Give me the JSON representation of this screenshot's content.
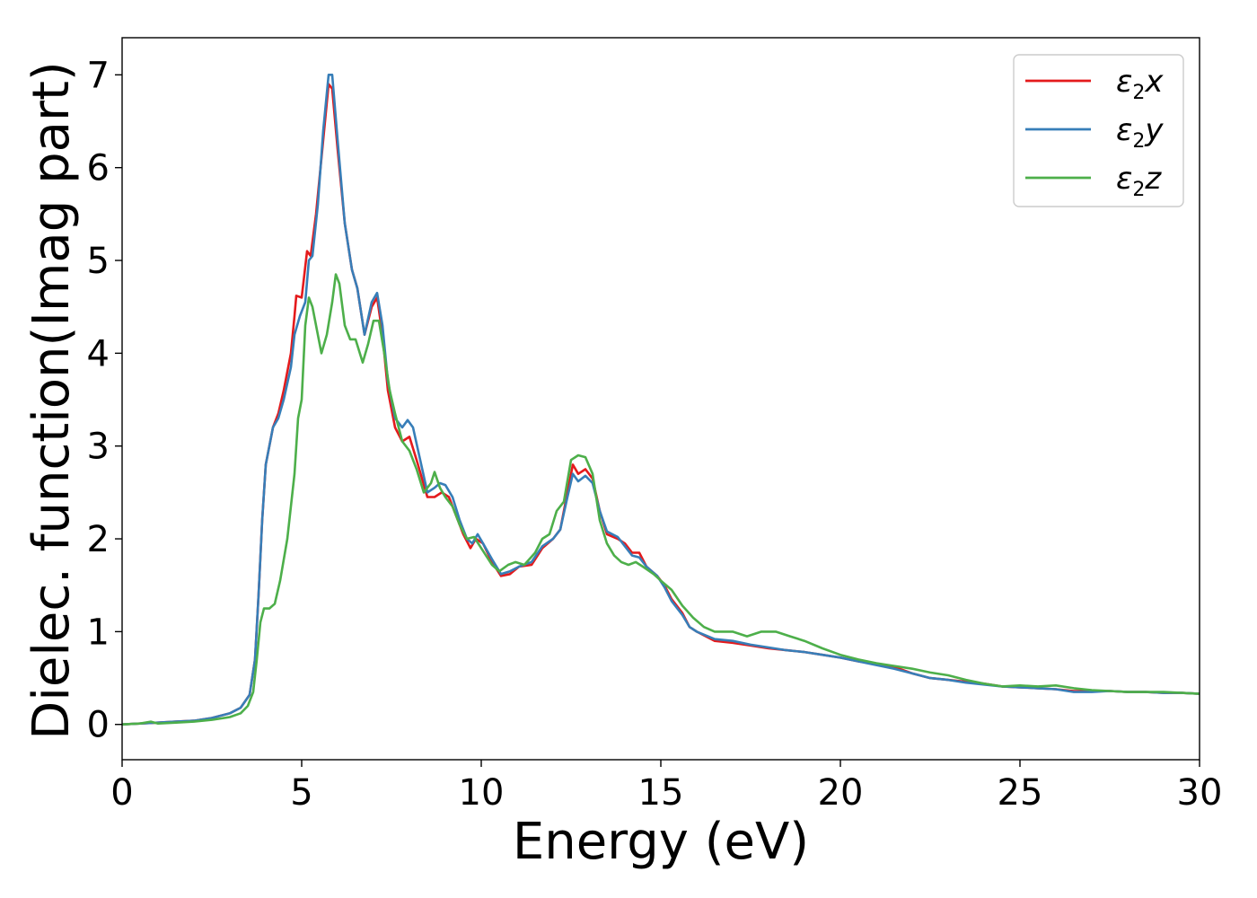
{
  "chart_data": {
    "type": "line",
    "xlabel": "Energy (eV)",
    "ylabel": "Dielec. function(Imag part)",
    "xlim": [
      0,
      30
    ],
    "ylim": [
      -0.38,
      7.4
    ],
    "x_ticks": [
      0,
      5,
      10,
      15,
      20,
      25,
      30
    ],
    "y_ticks": [
      0,
      1,
      2,
      3,
      4,
      5,
      6,
      7
    ],
    "grid": false,
    "legend_position": "top-right",
    "series": [
      {
        "name": "ε2x",
        "legend": {
          "base": "ε",
          "sub": "2",
          "suffix": "x"
        },
        "color": "#e41a1c",
        "points": [
          [
            0,
            0.0
          ],
          [
            0.5,
            0.01
          ],
          [
            1,
            0.02
          ],
          [
            1.5,
            0.03
          ],
          [
            2,
            0.04
          ],
          [
            2.5,
            0.07
          ],
          [
            3,
            0.12
          ],
          [
            3.3,
            0.18
          ],
          [
            3.55,
            0.32
          ],
          [
            3.7,
            0.7
          ],
          [
            3.8,
            1.4
          ],
          [
            3.9,
            2.2
          ],
          [
            4.0,
            2.8
          ],
          [
            4.2,
            3.2
          ],
          [
            4.35,
            3.35
          ],
          [
            4.5,
            3.6
          ],
          [
            4.7,
            4.0
          ],
          [
            4.8,
            4.4
          ],
          [
            4.85,
            4.62
          ],
          [
            5.0,
            4.6
          ],
          [
            5.15,
            5.1
          ],
          [
            5.25,
            5.05
          ],
          [
            5.4,
            5.5
          ],
          [
            5.6,
            6.3
          ],
          [
            5.75,
            6.9
          ],
          [
            5.85,
            6.85
          ],
          [
            6.0,
            6.2
          ],
          [
            6.2,
            5.4
          ],
          [
            6.4,
            4.9
          ],
          [
            6.55,
            4.7
          ],
          [
            6.75,
            4.2
          ],
          [
            6.95,
            4.5
          ],
          [
            7.1,
            4.6
          ],
          [
            7.25,
            4.2
          ],
          [
            7.4,
            3.6
          ],
          [
            7.6,
            3.2
          ],
          [
            7.8,
            3.05
          ],
          [
            8.0,
            3.1
          ],
          [
            8.2,
            2.85
          ],
          [
            8.5,
            2.45
          ],
          [
            8.7,
            2.45
          ],
          [
            8.9,
            2.5
          ],
          [
            9.1,
            2.45
          ],
          [
            9.3,
            2.25
          ],
          [
            9.5,
            2.05
          ],
          [
            9.7,
            1.9
          ],
          [
            9.85,
            2.0
          ],
          [
            10.05,
            1.95
          ],
          [
            10.3,
            1.75
          ],
          [
            10.55,
            1.6
          ],
          [
            10.8,
            1.62
          ],
          [
            11.05,
            1.7
          ],
          [
            11.4,
            1.72
          ],
          [
            11.7,
            1.9
          ],
          [
            12.0,
            2.0
          ],
          [
            12.2,
            2.1
          ],
          [
            12.4,
            2.5
          ],
          [
            12.55,
            2.8
          ],
          [
            12.7,
            2.7
          ],
          [
            12.9,
            2.75
          ],
          [
            13.1,
            2.65
          ],
          [
            13.3,
            2.3
          ],
          [
            13.5,
            2.05
          ],
          [
            13.8,
            2.0
          ],
          [
            14.0,
            1.95
          ],
          [
            14.2,
            1.85
          ],
          [
            14.4,
            1.85
          ],
          [
            14.6,
            1.7
          ],
          [
            14.9,
            1.6
          ],
          [
            15.1,
            1.5
          ],
          [
            15.3,
            1.35
          ],
          [
            15.6,
            1.2
          ],
          [
            15.8,
            1.05
          ],
          [
            16.0,
            1.0
          ],
          [
            16.5,
            0.9
          ],
          [
            17.0,
            0.88
          ],
          [
            17.5,
            0.85
          ],
          [
            18.0,
            0.82
          ],
          [
            18.5,
            0.8
          ],
          [
            19.0,
            0.78
          ],
          [
            19.5,
            0.75
          ],
          [
            20.0,
            0.72
          ],
          [
            20.5,
            0.68
          ],
          [
            21.0,
            0.65
          ],
          [
            21.5,
            0.62
          ],
          [
            22.0,
            0.55
          ],
          [
            22.5,
            0.5
          ],
          [
            23.0,
            0.48
          ],
          [
            23.5,
            0.46
          ],
          [
            24.0,
            0.44
          ],
          [
            24.5,
            0.41
          ],
          [
            25.0,
            0.4
          ],
          [
            25.5,
            0.39
          ],
          [
            26.0,
            0.38
          ],
          [
            26.5,
            0.36
          ],
          [
            27.0,
            0.36
          ],
          [
            27.5,
            0.36
          ],
          [
            28.0,
            0.35
          ],
          [
            28.5,
            0.35
          ],
          [
            29.0,
            0.34
          ],
          [
            29.5,
            0.34
          ],
          [
            30.0,
            0.33
          ]
        ]
      },
      {
        "name": "ε2y",
        "legend": {
          "base": "ε",
          "sub": "2",
          "suffix": "y"
        },
        "color": "#377eb8",
        "points": [
          [
            0,
            0.0
          ],
          [
            0.5,
            0.01
          ],
          [
            1,
            0.02
          ],
          [
            1.5,
            0.03
          ],
          [
            2,
            0.04
          ],
          [
            2.5,
            0.07
          ],
          [
            3,
            0.12
          ],
          [
            3.3,
            0.18
          ],
          [
            3.55,
            0.32
          ],
          [
            3.7,
            0.7
          ],
          [
            3.8,
            1.4
          ],
          [
            3.9,
            2.2
          ],
          [
            4.0,
            2.8
          ],
          [
            4.2,
            3.2
          ],
          [
            4.35,
            3.3
          ],
          [
            4.5,
            3.5
          ],
          [
            4.7,
            3.85
          ],
          [
            4.8,
            4.2
          ],
          [
            4.95,
            4.4
          ],
          [
            5.1,
            4.55
          ],
          [
            5.2,
            5.0
          ],
          [
            5.3,
            5.05
          ],
          [
            5.45,
            5.6
          ],
          [
            5.6,
            6.4
          ],
          [
            5.75,
            7.0
          ],
          [
            5.85,
            7.0
          ],
          [
            6.0,
            6.3
          ],
          [
            6.2,
            5.4
          ],
          [
            6.4,
            4.9
          ],
          [
            6.55,
            4.7
          ],
          [
            6.75,
            4.2
          ],
          [
            6.95,
            4.55
          ],
          [
            7.1,
            4.65
          ],
          [
            7.25,
            4.3
          ],
          [
            7.4,
            3.7
          ],
          [
            7.6,
            3.3
          ],
          [
            7.8,
            3.2
          ],
          [
            7.95,
            3.28
          ],
          [
            8.1,
            3.2
          ],
          [
            8.3,
            2.85
          ],
          [
            8.5,
            2.5
          ],
          [
            8.7,
            2.55
          ],
          [
            8.85,
            2.6
          ],
          [
            9.0,
            2.58
          ],
          [
            9.2,
            2.45
          ],
          [
            9.4,
            2.2
          ],
          [
            9.6,
            2.0
          ],
          [
            9.75,
            1.95
          ],
          [
            9.9,
            2.05
          ],
          [
            10.05,
            1.95
          ],
          [
            10.3,
            1.78
          ],
          [
            10.55,
            1.62
          ],
          [
            10.8,
            1.65
          ],
          [
            11.05,
            1.7
          ],
          [
            11.4,
            1.75
          ],
          [
            11.7,
            1.92
          ],
          [
            12.0,
            2.0
          ],
          [
            12.2,
            2.1
          ],
          [
            12.4,
            2.45
          ],
          [
            12.55,
            2.7
          ],
          [
            12.7,
            2.62
          ],
          [
            12.9,
            2.68
          ],
          [
            13.1,
            2.6
          ],
          [
            13.3,
            2.3
          ],
          [
            13.5,
            2.08
          ],
          [
            13.8,
            2.02
          ],
          [
            14.0,
            1.92
          ],
          [
            14.2,
            1.82
          ],
          [
            14.4,
            1.8
          ],
          [
            14.6,
            1.7
          ],
          [
            14.9,
            1.6
          ],
          [
            15.1,
            1.48
          ],
          [
            15.3,
            1.33
          ],
          [
            15.6,
            1.18
          ],
          [
            15.8,
            1.05
          ],
          [
            16.0,
            1.0
          ],
          [
            16.5,
            0.92
          ],
          [
            17.0,
            0.9
          ],
          [
            17.5,
            0.86
          ],
          [
            18.0,
            0.83
          ],
          [
            18.5,
            0.8
          ],
          [
            19.0,
            0.78
          ],
          [
            19.5,
            0.75
          ],
          [
            20.0,
            0.72
          ],
          [
            20.5,
            0.68
          ],
          [
            21.0,
            0.64
          ],
          [
            21.5,
            0.6
          ],
          [
            22.0,
            0.55
          ],
          [
            22.5,
            0.5
          ],
          [
            23.0,
            0.48
          ],
          [
            23.5,
            0.45
          ],
          [
            24.0,
            0.43
          ],
          [
            24.5,
            0.41
          ],
          [
            25.0,
            0.4
          ],
          [
            25.5,
            0.39
          ],
          [
            26.0,
            0.38
          ],
          [
            26.5,
            0.35
          ],
          [
            27.0,
            0.35
          ],
          [
            27.5,
            0.36
          ],
          [
            28.0,
            0.35
          ],
          [
            28.5,
            0.35
          ],
          [
            29.0,
            0.34
          ],
          [
            29.5,
            0.34
          ],
          [
            30.0,
            0.33
          ]
        ]
      },
      {
        "name": "ε2z",
        "legend": {
          "base": "ε",
          "sub": "2",
          "suffix": "z"
        },
        "color": "#4daf4a",
        "points": [
          [
            0,
            0.0
          ],
          [
            0.5,
            0.01
          ],
          [
            0.8,
            0.03
          ],
          [
            1.0,
            0.01
          ],
          [
            1.5,
            0.02
          ],
          [
            2,
            0.03
          ],
          [
            2.5,
            0.05
          ],
          [
            3,
            0.08
          ],
          [
            3.3,
            0.12
          ],
          [
            3.5,
            0.2
          ],
          [
            3.65,
            0.35
          ],
          [
            3.75,
            0.7
          ],
          [
            3.85,
            1.1
          ],
          [
            3.95,
            1.25
          ],
          [
            4.1,
            1.25
          ],
          [
            4.25,
            1.3
          ],
          [
            4.4,
            1.55
          ],
          [
            4.6,
            2.0
          ],
          [
            4.8,
            2.7
          ],
          [
            4.9,
            3.3
          ],
          [
            5.0,
            3.5
          ],
          [
            5.1,
            4.3
          ],
          [
            5.2,
            4.6
          ],
          [
            5.3,
            4.5
          ],
          [
            5.45,
            4.2
          ],
          [
            5.55,
            4.0
          ],
          [
            5.7,
            4.2
          ],
          [
            5.85,
            4.55
          ],
          [
            5.95,
            4.85
          ],
          [
            6.05,
            4.75
          ],
          [
            6.2,
            4.3
          ],
          [
            6.35,
            4.15
          ],
          [
            6.5,
            4.15
          ],
          [
            6.7,
            3.9
          ],
          [
            6.85,
            4.1
          ],
          [
            7.0,
            4.35
          ],
          [
            7.15,
            4.35
          ],
          [
            7.3,
            4.0
          ],
          [
            7.45,
            3.6
          ],
          [
            7.6,
            3.35
          ],
          [
            7.8,
            3.05
          ],
          [
            8.0,
            2.95
          ],
          [
            8.2,
            2.75
          ],
          [
            8.4,
            2.5
          ],
          [
            8.6,
            2.6
          ],
          [
            8.7,
            2.72
          ],
          [
            8.85,
            2.55
          ],
          [
            9.0,
            2.45
          ],
          [
            9.2,
            2.35
          ],
          [
            9.4,
            2.15
          ],
          [
            9.6,
            2.0
          ],
          [
            9.8,
            2.02
          ],
          [
            10.0,
            1.9
          ],
          [
            10.3,
            1.72
          ],
          [
            10.5,
            1.65
          ],
          [
            10.75,
            1.72
          ],
          [
            10.95,
            1.75
          ],
          [
            11.2,
            1.72
          ],
          [
            11.5,
            1.85
          ],
          [
            11.7,
            2.0
          ],
          [
            11.9,
            2.05
          ],
          [
            12.1,
            2.3
          ],
          [
            12.3,
            2.4
          ],
          [
            12.5,
            2.85
          ],
          [
            12.7,
            2.9
          ],
          [
            12.9,
            2.88
          ],
          [
            13.1,
            2.7
          ],
          [
            13.3,
            2.2
          ],
          [
            13.5,
            1.95
          ],
          [
            13.7,
            1.82
          ],
          [
            13.9,
            1.75
          ],
          [
            14.1,
            1.72
          ],
          [
            14.3,
            1.75
          ],
          [
            14.5,
            1.7
          ],
          [
            14.8,
            1.62
          ],
          [
            15.0,
            1.55
          ],
          [
            15.3,
            1.45
          ],
          [
            15.6,
            1.28
          ],
          [
            15.9,
            1.15
          ],
          [
            16.2,
            1.05
          ],
          [
            16.5,
            1.0
          ],
          [
            17.0,
            1.0
          ],
          [
            17.4,
            0.95
          ],
          [
            17.8,
            1.0
          ],
          [
            18.2,
            1.0
          ],
          [
            18.6,
            0.95
          ],
          [
            19.0,
            0.9
          ],
          [
            19.5,
            0.82
          ],
          [
            20.0,
            0.75
          ],
          [
            20.5,
            0.7
          ],
          [
            21.0,
            0.66
          ],
          [
            21.5,
            0.63
          ],
          [
            22.0,
            0.6
          ],
          [
            22.5,
            0.56
          ],
          [
            23.0,
            0.53
          ],
          [
            23.5,
            0.48
          ],
          [
            24.0,
            0.44
          ],
          [
            24.5,
            0.41
          ],
          [
            25.0,
            0.42
          ],
          [
            25.5,
            0.41
          ],
          [
            26.0,
            0.42
          ],
          [
            26.5,
            0.39
          ],
          [
            27.0,
            0.37
          ],
          [
            27.5,
            0.36
          ],
          [
            28.0,
            0.35
          ],
          [
            28.5,
            0.35
          ],
          [
            29.0,
            0.35
          ],
          [
            29.5,
            0.34
          ],
          [
            30.0,
            0.33
          ]
        ]
      }
    ]
  }
}
